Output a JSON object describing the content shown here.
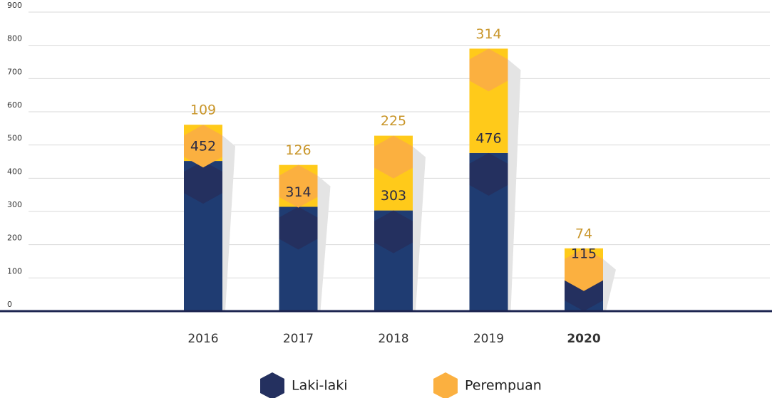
{
  "chart_data": {
    "type": "bar",
    "stacked": true,
    "categories": [
      "2016",
      "2017",
      "2018",
      "2019",
      "2020"
    ],
    "series": [
      {
        "name": "Laki-laki",
        "color": "#1f3c72",
        "cap_color": "#24305f",
        "label_color": "#2b2b45",
        "values": [
          452,
          314,
          303,
          476,
          115
        ]
      },
      {
        "name": "Perempuan",
        "color": "#ffca1a",
        "cap_color": "#fbb040",
        "label_color": "#c9962a",
        "values": [
          109,
          126,
          225,
          314,
          74
        ]
      }
    ],
    "ylim": [
      0,
      900
    ],
    "yticks": [
      0,
      100,
      200,
      300,
      400,
      500,
      600,
      700,
      800,
      900
    ],
    "grid": true,
    "legend": "bottom"
  }
}
